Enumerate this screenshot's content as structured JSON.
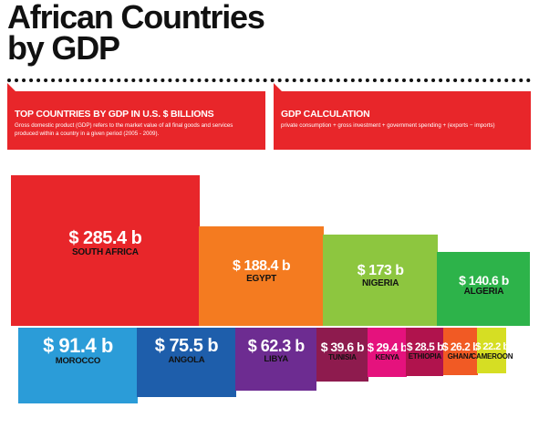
{
  "title": {
    "line1": "African Countries",
    "line2": "by GDP"
  },
  "info_top": {
    "heading_plain": "TOP COUNTRIES BY GDP",
    "heading_accent": "IN U.S. $ BILLIONS",
    "body": "Gross domestic product (GDP) refers to the market value of all final goods and services produced within a country in a given period (2005 - 2009)."
  },
  "info_calc": {
    "heading": "GDP CALCULATION",
    "body": "private consumption + gross investment + government spending + (exports − imports)"
  },
  "chart_data": {
    "type": "bar",
    "unit": "U.S. $ billions",
    "categories": [
      "SOUTH AFRICA",
      "EGYPT",
      "NIGERIA",
      "ALGERIA",
      "MOROCCO",
      "ANGOLA",
      "LIBYA",
      "TUNISIA",
      "KENYA",
      "ETHIOPIA",
      "GHANA",
      "CAMEROON"
    ],
    "values": [
      285.4,
      188.4,
      173,
      140.6,
      91.4,
      75.5,
      62.3,
      39.6,
      29.4,
      28.5,
      26.2,
      22.2
    ],
    "labels": [
      "$ 285.4 b",
      "$ 188.4 b",
      "$ 173 b",
      "$ 140.6 b",
      "$ 91.4 b",
      "$ 75.5 b",
      "$ 62.3 b",
      "$ 39.6 b",
      "$ 29.4 b",
      "$ 28.5 b",
      "$ 26.2 b",
      "$ 22.2 b"
    ],
    "colors": [
      "#e8262a",
      "#f47b20",
      "#8dc63f",
      "#2db34a",
      "#2b9cd8",
      "#1e5eab",
      "#6d2c91",
      "#8e1b4e",
      "#e5127d",
      "#b0134d",
      "#f15a24",
      "#d6de23"
    ],
    "rows": [
      4,
      8
    ],
    "annotation_colors": {
      "info_box": "#e8262a",
      "text_dark": "#111111"
    }
  }
}
